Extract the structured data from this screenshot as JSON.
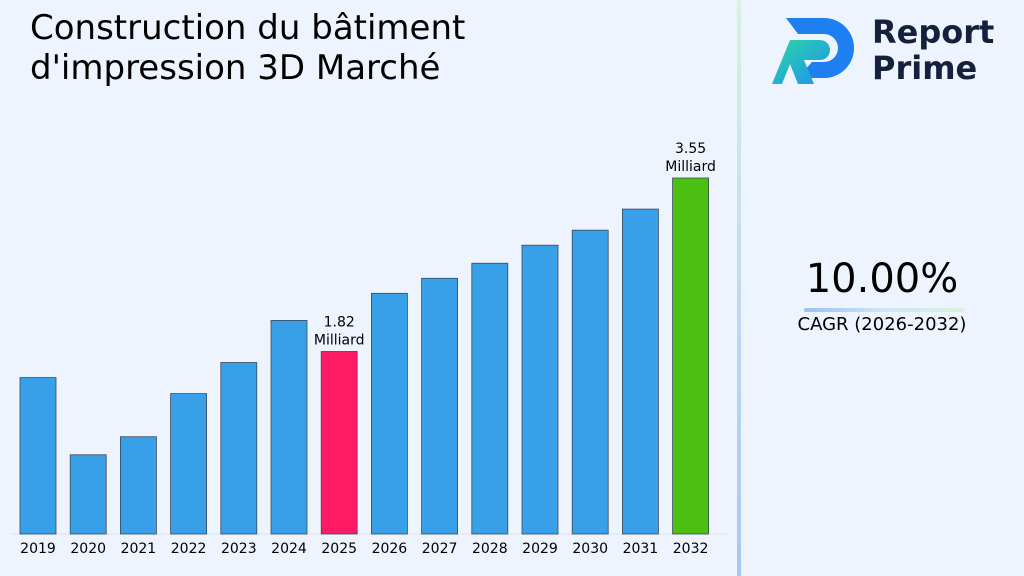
{
  "chart_data": {
    "type": "bar",
    "title": "Construction du bâtiment d'impression 3D Marché",
    "categories": [
      "2019",
      "2020",
      "2021",
      "2022",
      "2023",
      "2024",
      "2025",
      "2026",
      "2027",
      "2028",
      "2029",
      "2030",
      "2031",
      "2032"
    ],
    "values": [
      1.56,
      0.79,
      0.97,
      1.4,
      1.71,
      2.13,
      1.82,
      2.4,
      2.55,
      2.7,
      2.88,
      3.03,
      3.24,
      3.55
    ],
    "ylim": [
      0,
      3.55
    ],
    "bar_colors": {
      "default": "#38a0e8",
      "highlight": {
        "2025": "#ff1a66",
        "2032": "#4cc010"
      }
    },
    "data_labels": [
      {
        "category": "2025",
        "value": "1.82",
        "unit": "Milliard"
      },
      {
        "category": "2032",
        "value": "3.55",
        "unit": "Milliard"
      }
    ],
    "grid": false,
    "legend": "none"
  },
  "brand": {
    "line1": "Report",
    "line2": "Prime"
  },
  "cagr": {
    "value": "10.00%",
    "label": "CAGR (2026-2032)"
  }
}
